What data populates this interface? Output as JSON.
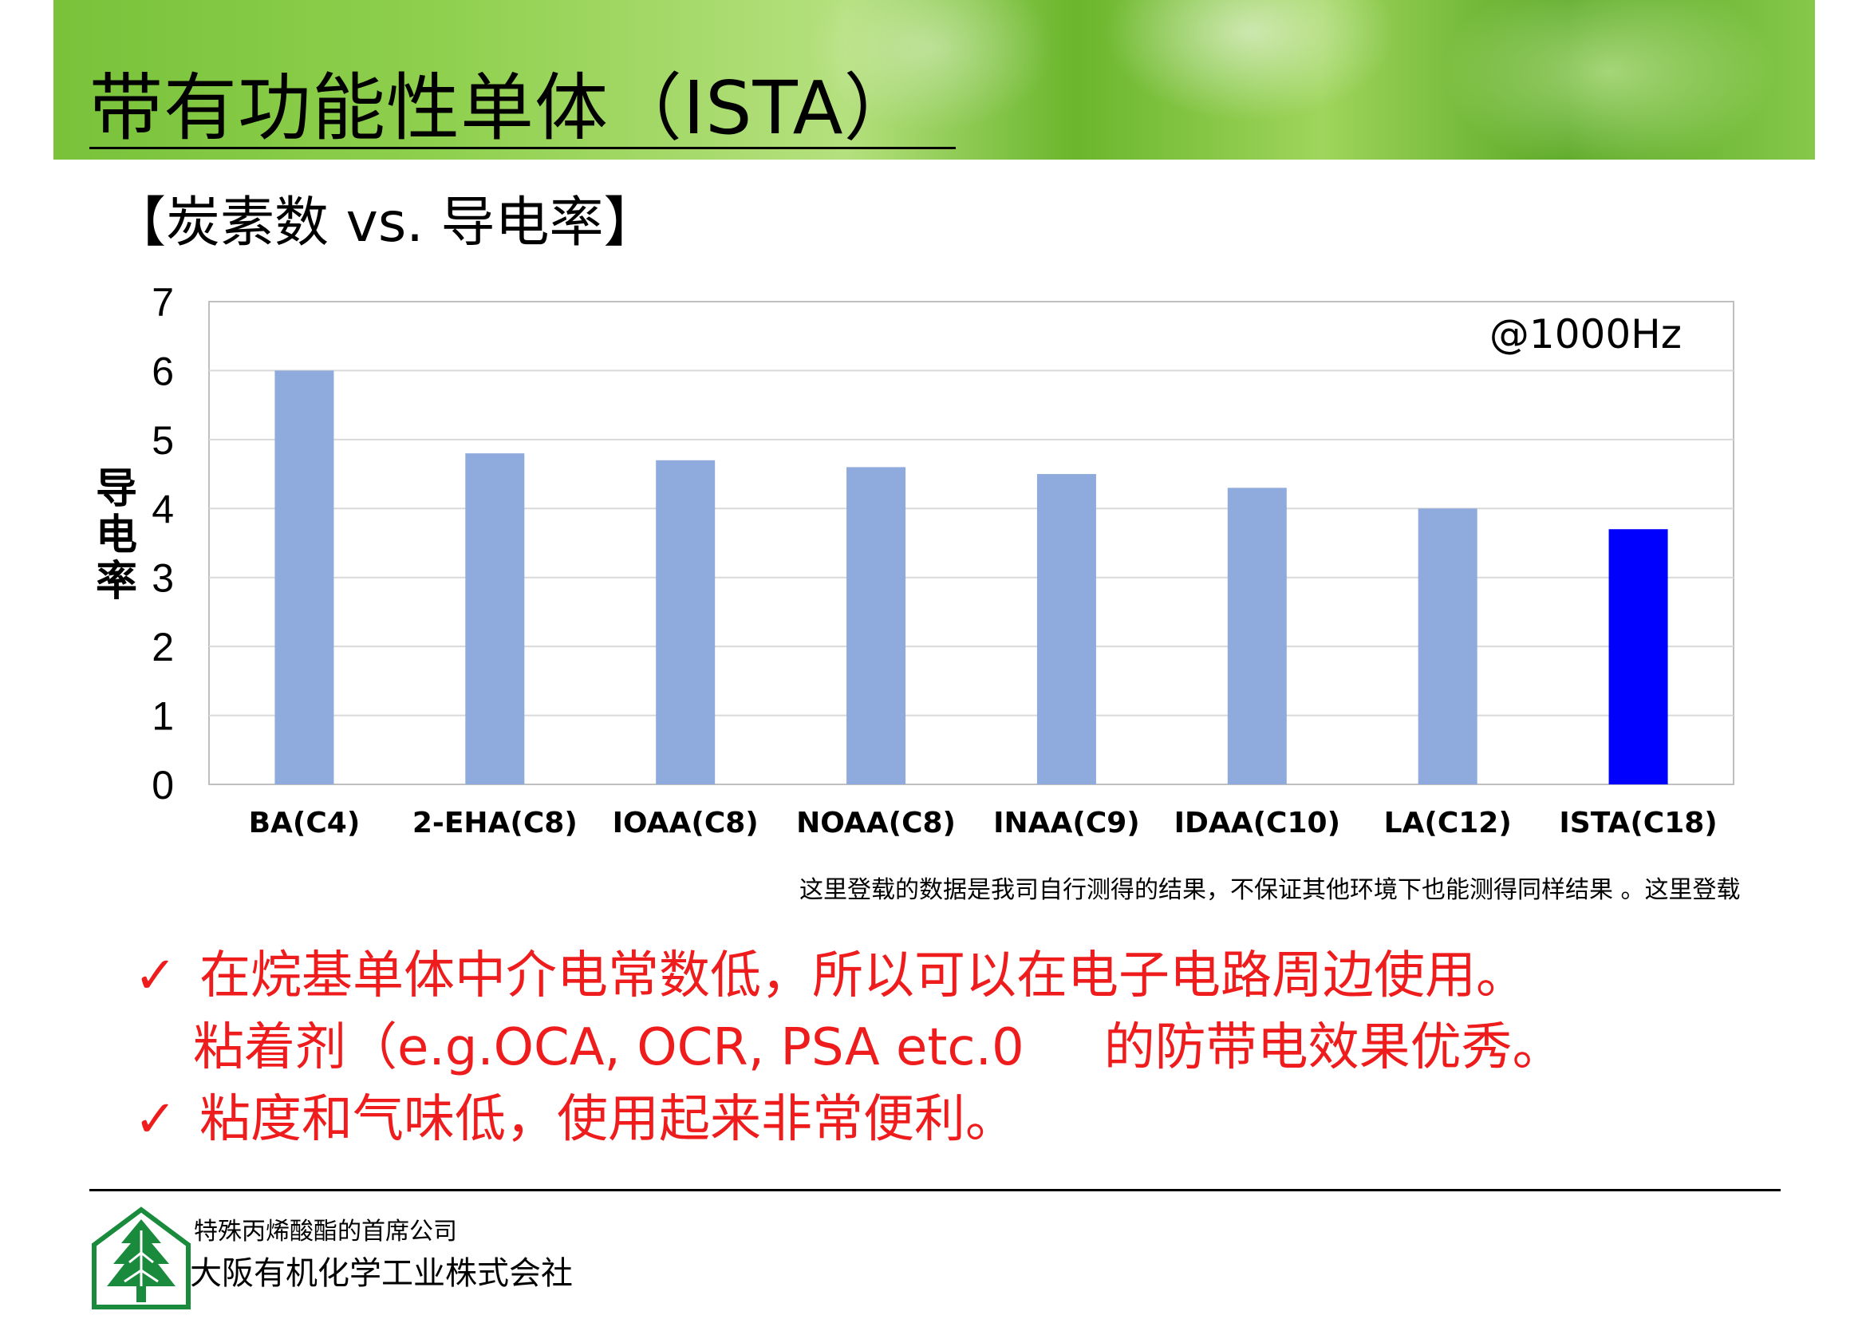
{
  "header": {
    "title": "带有功能性单体（ISTA）",
    "subtitle": "【炭素数 vs. 导电率】"
  },
  "chart_data": {
    "type": "bar",
    "title": "",
    "annotation": "@1000Hz",
    "ylabel": "导电率",
    "xlabel": "",
    "ylim": [
      0,
      7
    ],
    "yticks": [
      0,
      1,
      2,
      3,
      4,
      5,
      6,
      7
    ],
    "grid": true,
    "categories": [
      "BA(C4)",
      "2-EHA(C8)",
      "IOAA(C8)",
      "NOAA(C8)",
      "INAA(C9)",
      "IDAA(C10)",
      "LA(C12)",
      "ISTA(C18)"
    ],
    "values": [
      6.0,
      4.8,
      4.7,
      4.6,
      4.5,
      4.3,
      4.0,
      3.7
    ],
    "colors": {
      "bar": "#8faadc",
      "highlight": "#0000ff",
      "highlight_category": "ISTA(C18)",
      "grid": "#d9d9d9",
      "frame": "#bfbfbf"
    }
  },
  "note": "这里登载的数据是我司自行测得的结果，不保证其他环境下也能测得同样结果 。这里登载",
  "bullets": {
    "check": "✓",
    "line1": "在烷基单体中介电常数低，所以可以在电子电路周边使用。",
    "line2a": "粘着剂（e.g.OCA, OCR, PSA etc.0",
    "line2b": "的防带电效果优秀。",
    "line3": "粘度和气味低，使用起来非常便利。",
    "color": "#ee1c1c"
  },
  "footer": {
    "tagline": "特殊丙烯酸酯的首席公司",
    "company": "大阪有机化学工业株式会社",
    "logo_icon": "tree-logo-icon"
  }
}
